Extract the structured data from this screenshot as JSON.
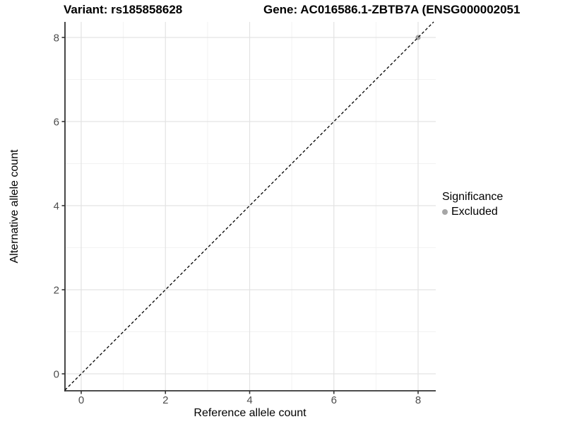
{
  "page": {
    "background": "#ffffff"
  },
  "chart_data": {
    "type": "scatter",
    "titles": {
      "variant": "Variant: rs185858628",
      "gene": "Gene: AC016586.1-ZBTB7A (ENSG000002051"
    },
    "xlabel": "Reference allele count",
    "ylabel": "Alternative allele count",
    "x_ticks": [
      0,
      2,
      4,
      6,
      8
    ],
    "y_ticks": [
      0,
      2,
      4,
      6,
      8
    ],
    "x_minor_ticks": [
      1,
      3,
      5,
      7
    ],
    "y_minor_ticks": [
      1,
      3,
      5,
      7
    ],
    "xlim": [
      -0.39,
      8.42
    ],
    "ylim": [
      -0.4,
      8.42
    ],
    "grid": true,
    "legend_position": "right",
    "identity_line": {
      "equation": "y = x",
      "style": "dashed",
      "color": "#000000"
    },
    "points": [
      {
        "x": 8,
        "y": 8,
        "significance": "Excluded"
      }
    ],
    "legend": {
      "title": "Significance",
      "items": [
        {
          "label": "Excluded",
          "color": "#a6a6a6"
        }
      ]
    },
    "colors": {
      "axis_line": "#333333",
      "tick_label": "#4d4d4d",
      "grid_major": "#e3e3e3",
      "grid_minor": "#f2f2f2",
      "point_excluded": "#a6a6a6",
      "title_text": "#000000"
    }
  }
}
